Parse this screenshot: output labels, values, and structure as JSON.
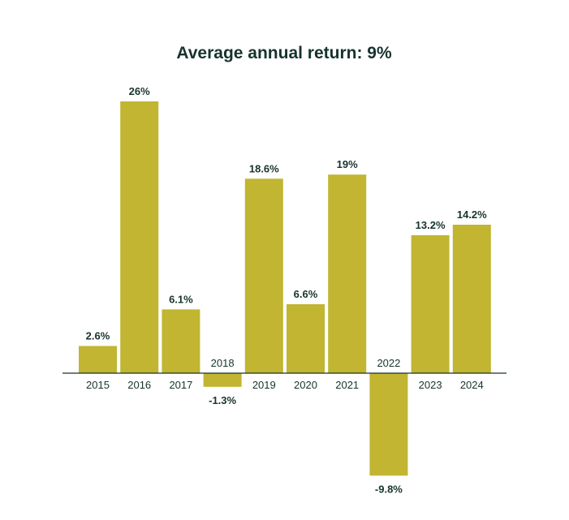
{
  "chart_data": {
    "type": "bar",
    "title": "Average annual return: 9%",
    "categories": [
      "2015",
      "2016",
      "2017",
      "2018",
      "2019",
      "2020",
      "2021",
      "2022",
      "2023",
      "2024"
    ],
    "values": [
      2.6,
      26,
      6.1,
      -1.3,
      18.6,
      6.6,
      19,
      -9.8,
      13.2,
      14.2
    ],
    "value_labels": [
      "2.6%",
      "26%",
      "6.1%",
      "-1.3%",
      "18.6%",
      "6.6%",
      "19%",
      "-9.8%",
      "13.2%",
      "14.2%"
    ],
    "xlabel": "",
    "ylabel": "",
    "ylim": [
      -9.8,
      26
    ],
    "grid": false,
    "bar_color": "#c1b531",
    "axis_color": "#17332d",
    "text_color": "#17332d"
  }
}
